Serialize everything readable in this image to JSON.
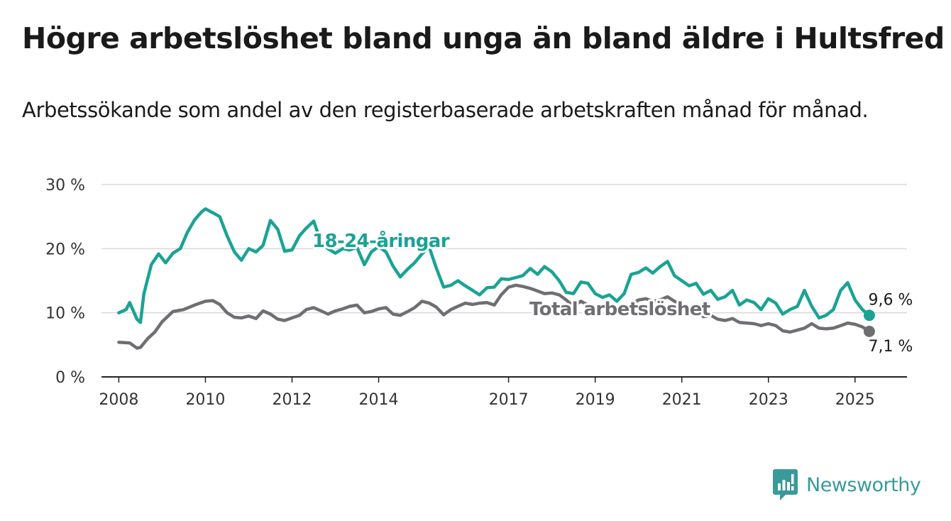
{
  "title": "Högre arbetslöshet bland unga än bland äldre i Hultsfred",
  "subtitle": "Arbetssökande som andel av den registerbaserade arbetskraften månad för månad.",
  "brand": {
    "name": "Newsworthy",
    "color": "#3a9a9a"
  },
  "chart_data": {
    "type": "line",
    "title": "Högre arbetslöshet bland unga än bland äldre i Hultsfred",
    "subtitle": "Arbetssökande som andel av den registerbaserade arbetskraften månad för månad.",
    "xlabel": "",
    "ylabel": "",
    "xlim": [
      2007.6,
      2026.2
    ],
    "ylim": [
      0,
      30
    ],
    "x_ticks": [
      2008,
      2010,
      2012,
      2014,
      2017,
      2019,
      2021,
      2023,
      2025
    ],
    "y_ticks": [
      {
        "value": 0,
        "label": "0 %"
      },
      {
        "value": 10,
        "label": "10 %"
      },
      {
        "value": 20,
        "label": "20 %"
      },
      {
        "value": 30,
        "label": "30 %"
      }
    ],
    "grid": true,
    "series": [
      {
        "name": "18-24-åringar",
        "color": "#1aa394",
        "end_label": "9,6 %",
        "points": [
          [
            2008.0,
            10.0
          ],
          [
            2008.17,
            10.5
          ],
          [
            2008.25,
            11.6
          ],
          [
            2008.42,
            9.0
          ],
          [
            2008.5,
            8.5
          ],
          [
            2008.58,
            13.0
          ],
          [
            2008.75,
            17.5
          ],
          [
            2008.92,
            19.2
          ],
          [
            2009.08,
            17.8
          ],
          [
            2009.25,
            19.3
          ],
          [
            2009.42,
            20.0
          ],
          [
            2009.58,
            22.5
          ],
          [
            2009.75,
            24.5
          ],
          [
            2009.92,
            25.8
          ],
          [
            2010.0,
            26.2
          ],
          [
            2010.17,
            25.6
          ],
          [
            2010.33,
            25.0
          ],
          [
            2010.5,
            22.0
          ],
          [
            2010.67,
            19.5
          ],
          [
            2010.83,
            18.2
          ],
          [
            2011.0,
            20.0
          ],
          [
            2011.17,
            19.5
          ],
          [
            2011.33,
            20.5
          ],
          [
            2011.5,
            24.4
          ],
          [
            2011.67,
            23.0
          ],
          [
            2011.83,
            19.6
          ],
          [
            2012.0,
            19.8
          ],
          [
            2012.17,
            22.0
          ],
          [
            2012.33,
            23.2
          ],
          [
            2012.5,
            24.3
          ],
          [
            2012.67,
            21.0
          ],
          [
            2012.83,
            20.0
          ],
          [
            2013.0,
            19.3
          ],
          [
            2013.17,
            20.0
          ],
          [
            2013.33,
            19.8
          ],
          [
            2013.5,
            20.2
          ],
          [
            2013.67,
            17.5
          ],
          [
            2013.83,
            19.5
          ],
          [
            2014.0,
            20.3
          ],
          [
            2014.17,
            19.5
          ],
          [
            2014.33,
            17.3
          ],
          [
            2014.5,
            15.6
          ],
          [
            2014.67,
            16.8
          ],
          [
            2014.83,
            17.8
          ],
          [
            2015.0,
            19.2
          ],
          [
            2015.17,
            20.2
          ],
          [
            2015.33,
            17.0
          ],
          [
            2015.5,
            14.0
          ],
          [
            2015.67,
            14.3
          ],
          [
            2015.83,
            15.0
          ],
          [
            2016.0,
            14.2
          ],
          [
            2016.17,
            13.5
          ],
          [
            2016.33,
            12.8
          ],
          [
            2016.5,
            13.9
          ],
          [
            2016.67,
            14.0
          ],
          [
            2016.83,
            15.3
          ],
          [
            2017.0,
            15.2
          ],
          [
            2017.17,
            15.5
          ],
          [
            2017.33,
            15.8
          ],
          [
            2017.5,
            16.9
          ],
          [
            2017.67,
            16.0
          ],
          [
            2017.83,
            17.2
          ],
          [
            2018.0,
            16.4
          ],
          [
            2018.17,
            15.0
          ],
          [
            2018.33,
            13.2
          ],
          [
            2018.5,
            13.0
          ],
          [
            2018.67,
            14.8
          ],
          [
            2018.83,
            14.6
          ],
          [
            2019.0,
            13.0
          ],
          [
            2019.17,
            12.4
          ],
          [
            2019.33,
            12.8
          ],
          [
            2019.5,
            11.8
          ],
          [
            2019.67,
            13.0
          ],
          [
            2019.83,
            16.0
          ],
          [
            2020.0,
            16.3
          ],
          [
            2020.17,
            17.0
          ],
          [
            2020.33,
            16.2
          ],
          [
            2020.5,
            17.2
          ],
          [
            2020.67,
            18.0
          ],
          [
            2020.83,
            15.8
          ],
          [
            2021.0,
            15.0
          ],
          [
            2021.17,
            14.2
          ],
          [
            2021.33,
            14.6
          ],
          [
            2021.5,
            12.9
          ],
          [
            2021.67,
            13.5
          ],
          [
            2021.83,
            12.1
          ],
          [
            2022.0,
            12.5
          ],
          [
            2022.17,
            13.5
          ],
          [
            2022.33,
            11.2
          ],
          [
            2022.5,
            12.0
          ],
          [
            2022.67,
            11.6
          ],
          [
            2022.83,
            10.5
          ],
          [
            2023.0,
            12.2
          ],
          [
            2023.17,
            11.5
          ],
          [
            2023.33,
            9.8
          ],
          [
            2023.5,
            10.5
          ],
          [
            2023.67,
            11.0
          ],
          [
            2023.83,
            13.5
          ],
          [
            2024.0,
            11.0
          ],
          [
            2024.17,
            9.2
          ],
          [
            2024.33,
            9.6
          ],
          [
            2024.5,
            10.5
          ],
          [
            2024.67,
            13.5
          ],
          [
            2024.83,
            14.7
          ],
          [
            2025.0,
            12.0
          ],
          [
            2025.17,
            10.5
          ],
          [
            2025.33,
            9.6
          ]
        ]
      },
      {
        "name": "Total arbetslöshet",
        "color": "#6e6e73",
        "end_label": "7,1 %",
        "points": [
          [
            2008.0,
            5.4
          ],
          [
            2008.25,
            5.3
          ],
          [
            2008.42,
            4.5
          ],
          [
            2008.5,
            4.6
          ],
          [
            2008.67,
            6.0
          ],
          [
            2008.83,
            7.0
          ],
          [
            2009.0,
            8.6
          ],
          [
            2009.25,
            10.2
          ],
          [
            2009.5,
            10.5
          ],
          [
            2009.75,
            11.2
          ],
          [
            2010.0,
            11.8
          ],
          [
            2010.17,
            11.9
          ],
          [
            2010.33,
            11.3
          ],
          [
            2010.5,
            10.0
          ],
          [
            2010.67,
            9.3
          ],
          [
            2010.83,
            9.2
          ],
          [
            2011.0,
            9.5
          ],
          [
            2011.17,
            9.1
          ],
          [
            2011.33,
            10.3
          ],
          [
            2011.5,
            9.8
          ],
          [
            2011.67,
            9.0
          ],
          [
            2011.83,
            8.8
          ],
          [
            2012.0,
            9.2
          ],
          [
            2012.17,
            9.6
          ],
          [
            2012.33,
            10.5
          ],
          [
            2012.5,
            10.8
          ],
          [
            2012.67,
            10.3
          ],
          [
            2012.83,
            9.8
          ],
          [
            2013.0,
            10.3
          ],
          [
            2013.17,
            10.6
          ],
          [
            2013.33,
            11.0
          ],
          [
            2013.5,
            11.2
          ],
          [
            2013.67,
            10.0
          ],
          [
            2013.83,
            10.2
          ],
          [
            2014.0,
            10.6
          ],
          [
            2014.17,
            10.8
          ],
          [
            2014.33,
            9.8
          ],
          [
            2014.5,
            9.6
          ],
          [
            2014.67,
            10.2
          ],
          [
            2014.83,
            10.8
          ],
          [
            2015.0,
            11.8
          ],
          [
            2015.17,
            11.5
          ],
          [
            2015.33,
            10.9
          ],
          [
            2015.5,
            9.7
          ],
          [
            2015.67,
            10.5
          ],
          [
            2015.83,
            11.0
          ],
          [
            2016.0,
            11.5
          ],
          [
            2016.17,
            11.3
          ],
          [
            2016.33,
            11.5
          ],
          [
            2016.5,
            11.6
          ],
          [
            2016.67,
            11.2
          ],
          [
            2016.83,
            12.8
          ],
          [
            2017.0,
            14.0
          ],
          [
            2017.17,
            14.3
          ],
          [
            2017.33,
            14.1
          ],
          [
            2017.5,
            13.8
          ],
          [
            2017.67,
            13.4
          ],
          [
            2017.83,
            13.0
          ],
          [
            2018.0,
            13.1
          ],
          [
            2018.17,
            12.8
          ],
          [
            2018.33,
            12.0
          ],
          [
            2018.5,
            11.0
          ],
          [
            2018.67,
            11.8
          ],
          [
            2018.83,
            11.2
          ],
          [
            2019.0,
            11.0
          ],
          [
            2019.17,
            10.8
          ],
          [
            2019.33,
            11.2
          ],
          [
            2019.5,
            10.2
          ],
          [
            2019.67,
            10.9
          ],
          [
            2019.83,
            11.3
          ],
          [
            2020.0,
            12.0
          ],
          [
            2020.17,
            12.2
          ],
          [
            2020.33,
            11.8
          ],
          [
            2020.5,
            12.0
          ],
          [
            2020.67,
            12.5
          ],
          [
            2020.83,
            11.8
          ],
          [
            2021.0,
            11.2
          ],
          [
            2021.17,
            10.5
          ],
          [
            2021.33,
            10.5
          ],
          [
            2021.5,
            9.4
          ],
          [
            2021.67,
            9.6
          ],
          [
            2021.83,
            9.0
          ],
          [
            2022.0,
            8.8
          ],
          [
            2022.17,
            9.1
          ],
          [
            2022.33,
            8.5
          ],
          [
            2022.5,
            8.4
          ],
          [
            2022.67,
            8.3
          ],
          [
            2022.83,
            8.0
          ],
          [
            2023.0,
            8.3
          ],
          [
            2023.17,
            8.0
          ],
          [
            2023.33,
            7.2
          ],
          [
            2023.5,
            7.0
          ],
          [
            2023.67,
            7.3
          ],
          [
            2023.83,
            7.6
          ],
          [
            2024.0,
            8.3
          ],
          [
            2024.17,
            7.6
          ],
          [
            2024.33,
            7.5
          ],
          [
            2024.5,
            7.6
          ],
          [
            2024.67,
            8.0
          ],
          [
            2024.83,
            8.4
          ],
          [
            2025.0,
            8.2
          ],
          [
            2025.17,
            7.8
          ],
          [
            2025.33,
            7.1
          ]
        ]
      }
    ]
  }
}
